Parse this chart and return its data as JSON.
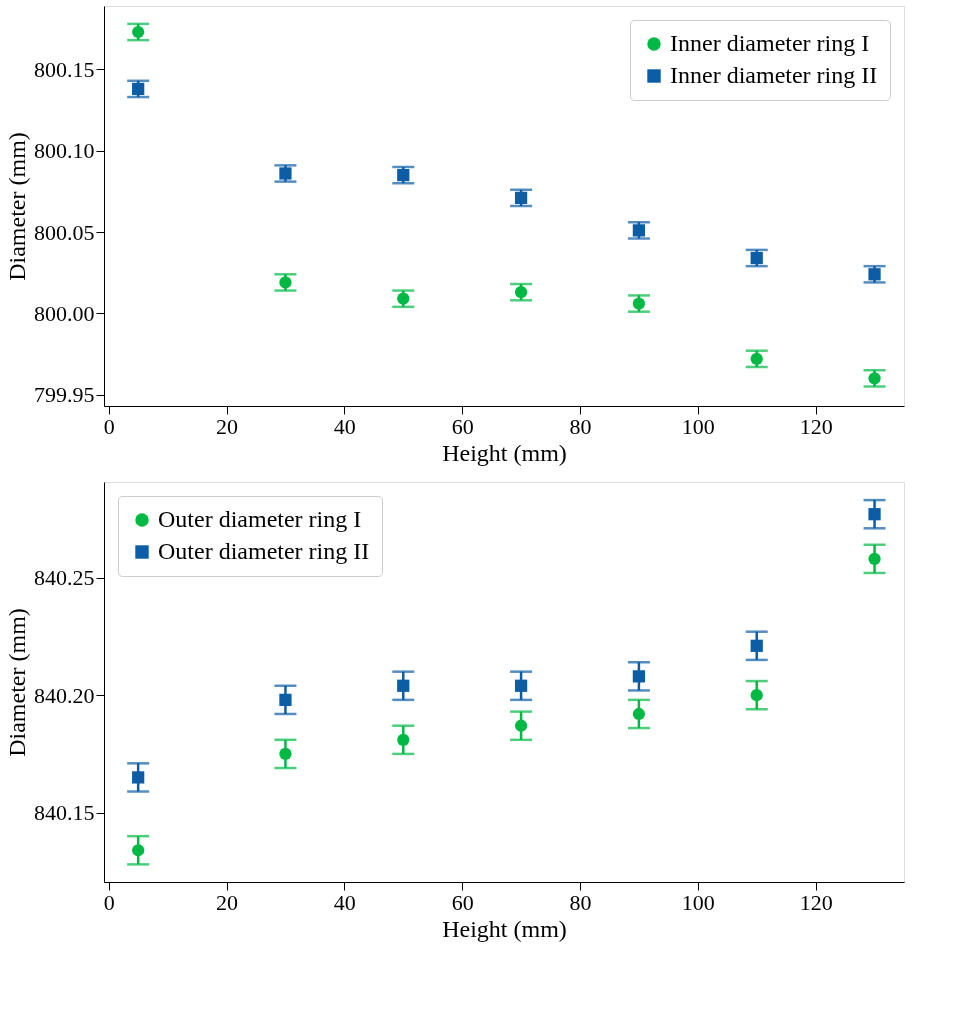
{
  "chart_data": [
    {
      "type": "scatter",
      "xlabel": "Height (mm)",
      "ylabel": "Diameter (mm)",
      "x": [
        5,
        30,
        50,
        70,
        90,
        110,
        130
      ],
      "xlim": [
        -0.8,
        135
      ],
      "xticks": [
        0,
        20,
        40,
        60,
        80,
        100,
        120
      ],
      "ylim": [
        799.943,
        800.189
      ],
      "yticks": [
        {
          "value": 799.95,
          "label": "799.95"
        },
        {
          "value": 800.0,
          "label": "800.00"
        },
        {
          "value": 800.05,
          "label": "800.05"
        },
        {
          "value": 800.1,
          "label": "800.10"
        },
        {
          "value": 800.15,
          "label": "800.15"
        }
      ],
      "legend": "top right",
      "grid": false,
      "series": [
        {
          "name": "Inner diameter ring I",
          "color": "#00b945",
          "marker": "circle",
          "values": [
            800.173,
            800.019,
            800.009,
            800.013,
            800.006,
            799.972,
            799.96
          ],
          "errors": [
            0.005,
            0.005,
            0.005,
            0.005,
            0.005,
            0.005,
            0.005
          ]
        },
        {
          "name": "Inner diameter ring II",
          "color": "#0c5da5",
          "marker": "square",
          "values": [
            800.138,
            800.086,
            800.085,
            800.071,
            800.051,
            800.034,
            800.024
          ],
          "errors": [
            0.005,
            0.005,
            0.005,
            0.005,
            0.005,
            0.005,
            0.005
          ]
        }
      ]
    },
    {
      "type": "scatter",
      "xlabel": "Height (mm)",
      "ylabel": "Diameter (mm)",
      "x": [
        5,
        30,
        50,
        70,
        90,
        110,
        130
      ],
      "xlim": [
        -0.8,
        135
      ],
      "xticks": [
        0,
        20,
        40,
        60,
        80,
        100,
        120
      ],
      "ylim": [
        840.1205,
        840.2907
      ],
      "yticks": [
        {
          "value": 840.15,
          "label": "840.15"
        },
        {
          "value": 840.2,
          "label": "840.20"
        },
        {
          "value": 840.25,
          "label": "840.25"
        }
      ],
      "legend": "top left",
      "grid": false,
      "series": [
        {
          "name": "Outer diameter ring I",
          "color": "#00b945",
          "marker": "circle",
          "values": [
            840.134,
            840.175,
            840.181,
            840.187,
            840.192,
            840.2,
            840.258
          ],
          "errors": [
            0.006,
            0.006,
            0.006,
            0.006,
            0.006,
            0.006,
            0.006
          ]
        },
        {
          "name": "Outer diameter ring II",
          "color": "#0c5da5",
          "marker": "square",
          "values": [
            840.165,
            840.198,
            840.204,
            840.204,
            840.208,
            840.221,
            840.277
          ],
          "errors": [
            0.006,
            0.006,
            0.006,
            0.006,
            0.006,
            0.006,
            0.006
          ]
        }
      ]
    }
  ]
}
